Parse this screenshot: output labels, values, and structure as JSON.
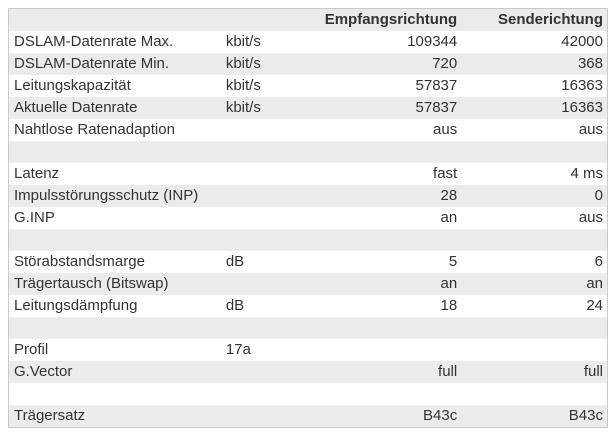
{
  "colors": {
    "stripe": "#ebebeb",
    "border": "#c9c9c9",
    "text": "#333333",
    "background": "#ffffff"
  },
  "table": {
    "columns": {
      "label": "",
      "unit": "",
      "rx": "Empfangsrichtung",
      "tx": "Senderichtung"
    },
    "rows": [
      {
        "label": "DSLAM-Datenrate Max.",
        "unit": "kbit/s",
        "rx": "109344",
        "tx": "42000"
      },
      {
        "label": "DSLAM-Datenrate Min.",
        "unit": "kbit/s",
        "rx": "720",
        "tx": "368"
      },
      {
        "label": "Leitungskapazität",
        "unit": "kbit/s",
        "rx": "57837",
        "tx": "16363"
      },
      {
        "label": "Aktuelle Datenrate",
        "unit": "kbit/s",
        "rx": "57837",
        "tx": "16363"
      },
      {
        "label": "Nahtlose Ratenadaption",
        "unit": "",
        "rx": "aus",
        "tx": "aus"
      },
      {
        "label": "",
        "unit": "",
        "rx": "",
        "tx": ""
      },
      {
        "label": "Latenz",
        "unit": "",
        "rx": "fast",
        "tx": "4 ms"
      },
      {
        "label": "Impulsstörungsschutz (INP)",
        "unit": "",
        "rx": "28",
        "tx": "0"
      },
      {
        "label": "G.INP",
        "unit": "",
        "rx": "an",
        "tx": "aus"
      },
      {
        "label": "",
        "unit": "",
        "rx": "",
        "tx": ""
      },
      {
        "label": "Störabstandsmarge",
        "unit": "dB",
        "rx": "5",
        "tx": "6"
      },
      {
        "label": "Trägertausch (Bitswap)",
        "unit": "",
        "rx": "an",
        "tx": "an"
      },
      {
        "label": "Leitungsdämpfung",
        "unit": "dB",
        "rx": "18",
        "tx": "24"
      },
      {
        "label": "",
        "unit": "",
        "rx": "",
        "tx": ""
      },
      {
        "label": "Profil",
        "unit": "17a",
        "rx": "",
        "tx": ""
      },
      {
        "label": "G.Vector",
        "unit": "",
        "rx": "full",
        "tx": "full"
      },
      {
        "label": "",
        "unit": "",
        "rx": "",
        "tx": ""
      },
      {
        "label": "Trägersatz",
        "unit": "",
        "rx": "B43c",
        "tx": "B43c"
      }
    ]
  }
}
